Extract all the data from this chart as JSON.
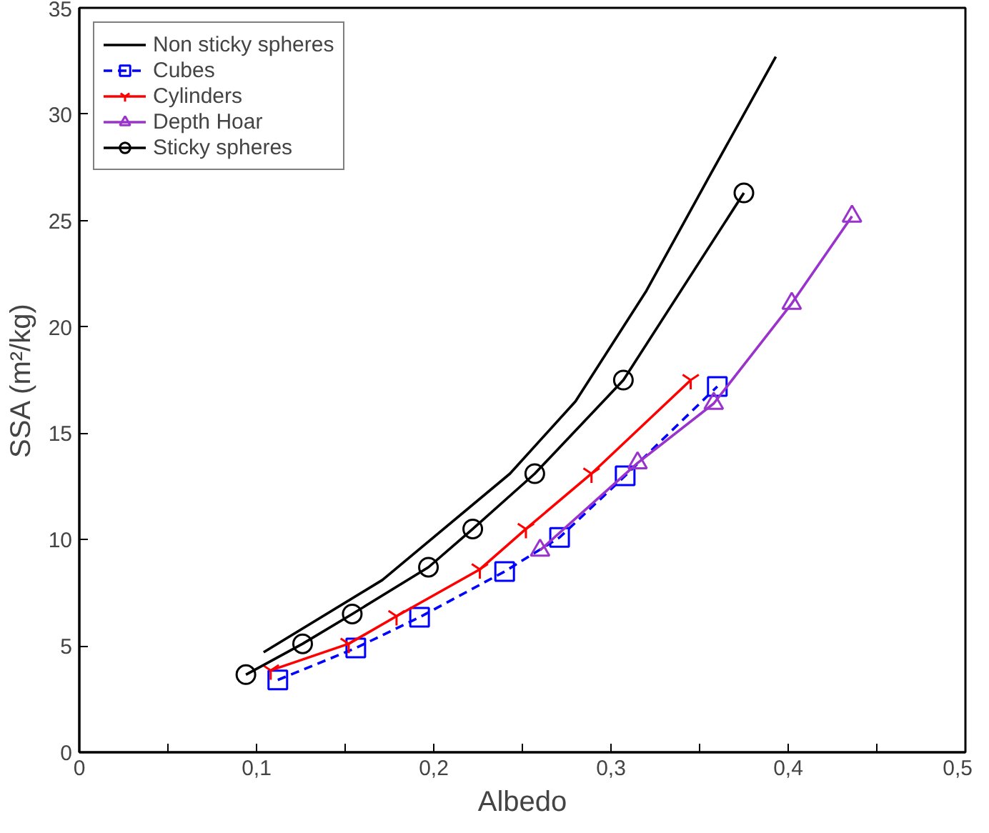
{
  "chart_data": {
    "type": "line",
    "xlabel": "Albedo",
    "ylabel": "SSA (m²/kg)",
    "xlim": [
      0,
      0.5
    ],
    "ylim": [
      0,
      35
    ],
    "xticks": [
      {
        "value": 0,
        "label": "0"
      },
      {
        "value": 0.05,
        "label": null
      },
      {
        "value": 0.1,
        "label": "0,1"
      },
      {
        "value": 0.15,
        "label": null
      },
      {
        "value": 0.2,
        "label": "0,2"
      },
      {
        "value": 0.25,
        "label": null
      },
      {
        "value": 0.3,
        "label": "0,3"
      },
      {
        "value": 0.35,
        "label": null
      },
      {
        "value": 0.4,
        "label": "0,4"
      },
      {
        "value": 0.45,
        "label": null
      },
      {
        "value": 0.5,
        "label": "0,5"
      }
    ],
    "yticks": [
      0,
      5,
      10,
      15,
      20,
      25,
      30,
      35
    ],
    "grid": false,
    "legend": "top left",
    "series": [
      {
        "name": "Non sticky spheres",
        "color": "#000000",
        "marker": "none",
        "line_style": "solid",
        "x": [
          0.104,
          0.171,
          0.243,
          0.28,
          0.32,
          0.355,
          0.393
        ],
        "values": [
          4.7,
          8.1,
          13.1,
          16.5,
          21.7,
          27,
          32.7
        ]
      },
      {
        "name": "Cubes",
        "color": "#0000ff",
        "marker": "square",
        "line_style": "dashed",
        "x": [
          0.112,
          0.156,
          0.192,
          0.24,
          0.271,
          0.308,
          0.36
        ],
        "values": [
          3.4,
          4.9,
          6.35,
          8.5,
          10.1,
          13.0,
          17.2
        ]
      },
      {
        "name": "Cylinders",
        "color": "#ff0000",
        "marker": "cross",
        "line_style": "solid",
        "x": [
          0.108,
          0.152,
          0.179,
          0.226,
          0.252,
          0.289,
          0.345
        ],
        "values": [
          3.85,
          5.1,
          6.4,
          8.6,
          10.5,
          13.1,
          17.5
        ]
      },
      {
        "name": "Depth Hoar",
        "color": "#9933cc",
        "marker": "triangle",
        "line_style": "solid",
        "x": [
          0.26,
          0.315,
          0.358,
          0.402,
          0.436
        ],
        "values": [
          9.5,
          13.6,
          16.4,
          21.1,
          25.2
        ]
      },
      {
        "name": "Sticky spheres",
        "color": "#000000",
        "marker": "circle",
        "line_style": "solid",
        "x": [
          0.094,
          0.126,
          0.154,
          0.197,
          0.222,
          0.257,
          0.307,
          0.375
        ],
        "values": [
          3.65,
          5.1,
          6.5,
          8.7,
          10.5,
          13.1,
          17.5,
          26.3
        ]
      }
    ]
  }
}
